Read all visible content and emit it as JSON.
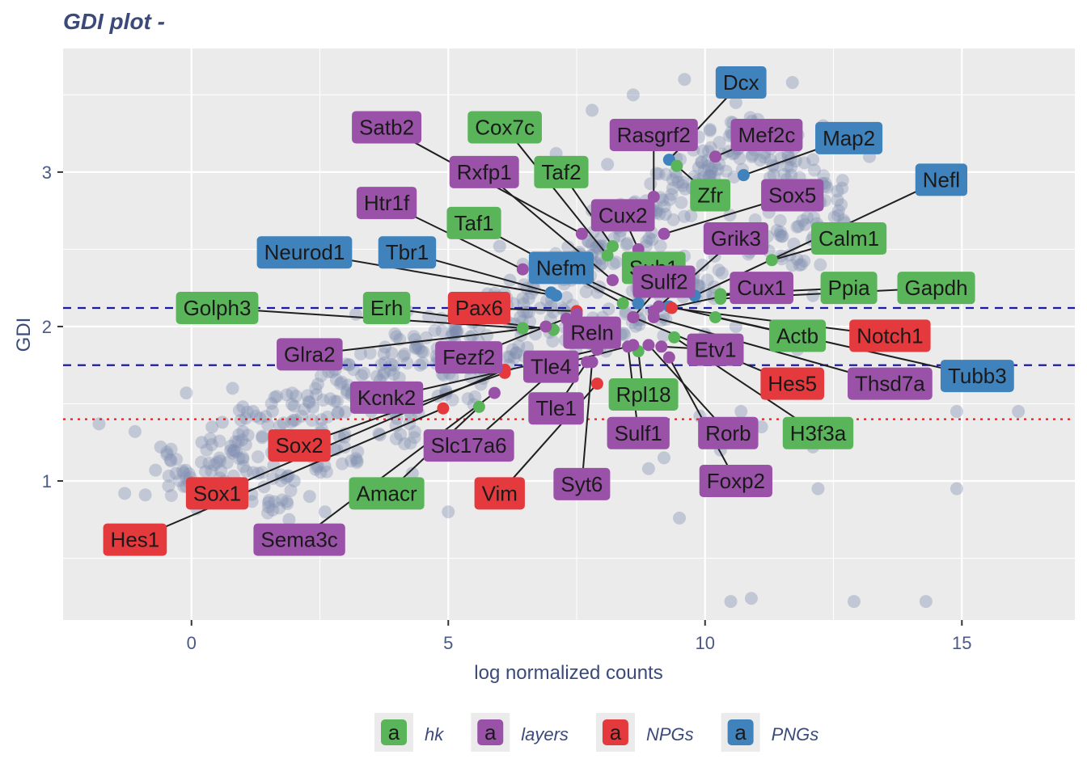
{
  "chart_data": {
    "type": "scatter",
    "title": "GDI plot -",
    "xlabel": "log normalized counts",
    "ylabel": "GDI",
    "xlim": [
      -2.5,
      17.2
    ],
    "ylim": [
      0.1,
      3.8
    ],
    "x_ticks": [
      0,
      5,
      10,
      15
    ],
    "y_ticks": [
      1,
      2,
      3
    ],
    "hlines": [
      {
        "y": 2.12,
        "style": "dashed",
        "color": "#1a1aa6"
      },
      {
        "y": 1.75,
        "style": "dashed",
        "color": "#1a1aa6"
      },
      {
        "y": 1.4,
        "style": "dotted",
        "color": "#ee1c1c"
      }
    ],
    "background_points": [
      [
        -1.8,
        1.37
      ],
      [
        -1.1,
        1.32
      ],
      [
        -1.3,
        0.92
      ],
      [
        -0.9,
        0.91
      ],
      [
        -0.7,
        1.07
      ],
      [
        -0.6,
        1.22
      ],
      [
        -0.4,
        1.13
      ],
      [
        -0.3,
        1.05
      ],
      [
        -0.1,
        1.02
      ],
      [
        0.2,
        1.25
      ],
      [
        0.4,
        1.35
      ],
      [
        0.6,
        1.38
      ],
      [
        0.8,
        1.18
      ],
      [
        0.5,
        1.12
      ],
      [
        1.0,
        1.32
      ],
      [
        1.2,
        1.45
      ],
      [
        0.3,
        0.95
      ],
      [
        0.7,
        0.98
      ],
      [
        1.5,
        0.86
      ],
      [
        1.3,
        1.05
      ],
      [
        -0.1,
        1.57
      ],
      [
        0.8,
        1.6
      ],
      [
        1.0,
        1.48
      ],
      [
        1.8,
        1.28
      ],
      [
        0.1,
        0.82
      ],
      [
        1.9,
        0.75
      ],
      [
        2.3,
        0.9
      ],
      [
        2.6,
        0.8
      ],
      [
        5.0,
        0.8
      ],
      [
        9.5,
        0.76
      ],
      [
        4.3,
        1.05
      ],
      [
        3.5,
        1.45
      ],
      [
        4.8,
        1.55
      ],
      [
        2.8,
        1.72
      ],
      [
        2.9,
        1.63
      ],
      [
        3.2,
        2.08
      ],
      [
        4.2,
        2.1
      ],
      [
        5.3,
        2.05
      ],
      [
        6.2,
        2.3
      ],
      [
        6.0,
        2.52
      ],
      [
        7.3,
        2.35
      ],
      [
        7.8,
        2.75
      ],
      [
        7.1,
        3.12
      ],
      [
        8.1,
        3.05
      ],
      [
        7.8,
        3.4
      ],
      [
        8.6,
        3.5
      ],
      [
        9.6,
        3.6
      ],
      [
        11.7,
        3.58
      ],
      [
        12.3,
        3.3
      ],
      [
        11.2,
        3.2
      ],
      [
        10.6,
        3.45
      ],
      [
        13.2,
        3.1
      ],
      [
        11.9,
        2.9
      ],
      [
        12.6,
        2.75
      ],
      [
        12.1,
        2.2
      ],
      [
        10.6,
        2.0
      ],
      [
        11.1,
        1.35
      ],
      [
        9.9,
        1.42
      ],
      [
        9.2,
        1.15
      ],
      [
        8.9,
        1.08
      ],
      [
        10.5,
        1.02
      ],
      [
        12.1,
        1.22
      ],
      [
        10.0,
        1.95
      ],
      [
        12.2,
        0.95
      ],
      [
        14.9,
        1.45
      ],
      [
        16.1,
        1.45
      ],
      [
        14.9,
        0.95
      ],
      [
        10.5,
        0.22
      ],
      [
        10.9,
        0.24
      ],
      [
        12.9,
        0.22
      ],
      [
        14.3,
        0.22
      ],
      [
        11.8,
        1.85
      ],
      [
        10.7,
        1.45
      ],
      [
        10.3,
        1.2
      ],
      [
        9.1,
        1.25
      ],
      [
        2.3,
        1.2
      ],
      [
        1.6,
        1.1
      ],
      [
        2.0,
        1.0
      ]
    ],
    "background_cloud": [
      [
        -0.1,
        1.05
      ],
      [
        0.6,
        1.15
      ],
      [
        1.3,
        1.3
      ],
      [
        2.0,
        1.42
      ],
      [
        2.7,
        1.55
      ],
      [
        3.4,
        1.68
      ],
      [
        4.1,
        1.8
      ],
      [
        4.8,
        1.92
      ],
      [
        5.5,
        2.02
      ],
      [
        6.2,
        2.12
      ],
      [
        6.9,
        2.25
      ],
      [
        7.5,
        2.38
      ],
      [
        8.1,
        2.52
      ],
      [
        8.7,
        2.68
      ],
      [
        9.3,
        2.85
      ],
      [
        9.8,
        3.0
      ],
      [
        10.3,
        3.12
      ],
      [
        10.9,
        3.2
      ],
      [
        11.4,
        3.12
      ],
      [
        11.9,
        2.95
      ],
      [
        12.3,
        2.8
      ],
      [
        1.5,
        0.95
      ],
      [
        2.8,
        1.2
      ],
      [
        4.0,
        1.4
      ],
      [
        5.3,
        1.65
      ],
      [
        6.6,
        1.9
      ],
      [
        7.7,
        2.0
      ],
      [
        8.8,
        2.1
      ],
      [
        9.9,
        2.3
      ],
      [
        10.8,
        2.6
      ],
      [
        11.8,
        2.55
      ]
    ],
    "categories": [
      "hk",
      "layers",
      "NPGs",
      "PNGs"
    ],
    "category_colors": {
      "hk": "#5ab55a",
      "layers": "#9a52a8",
      "NPGs": "#e43a3d",
      "PNGs": "#3f82bc"
    },
    "labelled_genes": [
      {
        "gene": "Dcx",
        "cat": "PNGs",
        "x": 9.3,
        "y": 3.08,
        "lx": 10.7,
        "ly": 3.58
      },
      {
        "gene": "Map2",
        "cat": "PNGs",
        "x": 10.75,
        "y": 2.98,
        "lx": 12.8,
        "ly": 3.22
      },
      {
        "gene": "Nefl",
        "cat": "PNGs",
        "x": 9.8,
        "y": 2.2,
        "lx": 14.6,
        "ly": 2.95
      },
      {
        "gene": "Neurod1",
        "cat": "PNGs",
        "x": 7.1,
        "y": 2.2,
        "lx": 2.2,
        "ly": 2.48
      },
      {
        "gene": "Tbr1",
        "cat": "PNGs",
        "x": 7.0,
        "y": 2.22,
        "lx": 4.2,
        "ly": 2.48
      },
      {
        "gene": "Nefm",
        "cat": "PNGs",
        "x": 8.7,
        "y": 2.15,
        "lx": 7.2,
        "ly": 2.38
      },
      {
        "gene": "Tubb3",
        "cat": "PNGs",
        "x": 9.3,
        "y": 2.13,
        "lx": 15.3,
        "ly": 1.68
      },
      {
        "gene": "Cox7c",
        "cat": "hk",
        "x": 8.1,
        "y": 2.46,
        "lx": 6.1,
        "ly": 3.29
      },
      {
        "gene": "Taf2",
        "cat": "hk",
        "x": 8.2,
        "y": 2.52,
        "lx": 7.2,
        "ly": 3.0
      },
      {
        "gene": "Zfr",
        "cat": "hk",
        "x": 9.45,
        "y": 3.04,
        "lx": 10.1,
        "ly": 2.85
      },
      {
        "gene": "Taf1",
        "cat": "hk",
        "x": 8.4,
        "y": 2.15,
        "lx": 5.5,
        "ly": 2.67
      },
      {
        "gene": "Sub1",
        "cat": "hk",
        "x": 8.9,
        "y": 2.34,
        "lx": 9.0,
        "ly": 2.38
      },
      {
        "gene": "Calm1",
        "cat": "hk",
        "x": 11.3,
        "y": 2.43,
        "lx": 12.8,
        "ly": 2.57
      },
      {
        "gene": "Ppia",
        "cat": "hk",
        "x": 10.3,
        "y": 2.21,
        "lx": 12.8,
        "ly": 2.25
      },
      {
        "gene": "Gapdh",
        "cat": "hk",
        "x": 10.3,
        "y": 2.18,
        "lx": 14.5,
        "ly": 2.25
      },
      {
        "gene": "Golph3",
        "cat": "hk",
        "x": 6.45,
        "y": 1.99,
        "lx": 0.5,
        "ly": 2.12
      },
      {
        "gene": "Erh",
        "cat": "hk",
        "x": 7.05,
        "y": 1.98,
        "lx": 3.8,
        "ly": 2.12
      },
      {
        "gene": "Actb",
        "cat": "hk",
        "x": 10.2,
        "y": 2.06,
        "lx": 11.8,
        "ly": 1.94
      },
      {
        "gene": "Rpl18",
        "cat": "hk",
        "x": 8.7,
        "y": 1.84,
        "lx": 8.8,
        "ly": 1.56
      },
      {
        "gene": "H3f3a",
        "cat": "hk",
        "x": 9.4,
        "y": 1.93,
        "lx": 12.2,
        "ly": 1.31
      },
      {
        "gene": "Amacr",
        "cat": "hk",
        "x": 5.6,
        "y": 1.48,
        "lx": 3.8,
        "ly": 0.92
      },
      {
        "gene": "Pax6",
        "cat": "NPGs",
        "x": 7.5,
        "y": 2.1,
        "lx": 5.6,
        "ly": 2.12
      },
      {
        "gene": "Notch1",
        "cat": "NPGs",
        "x": 9.35,
        "y": 2.12,
        "lx": 13.6,
        "ly": 1.94
      },
      {
        "gene": "Hes5",
        "cat": "NPGs",
        "x": 8.6,
        "y": 2.06,
        "lx": 11.7,
        "ly": 1.63
      },
      {
        "gene": "Sox2",
        "cat": "NPGs",
        "x": 6.1,
        "y": 1.7,
        "lx": 2.1,
        "ly": 1.23
      },
      {
        "gene": "Sox1",
        "cat": "NPGs",
        "x": 6.1,
        "y": 1.72,
        "lx": 0.5,
        "ly": 0.92
      },
      {
        "gene": "Hes1",
        "cat": "NPGs",
        "x": 4.9,
        "y": 1.47,
        "lx": -1.1,
        "ly": 0.62
      },
      {
        "gene": "Vim",
        "cat": "NPGs",
        "x": 7.9,
        "y": 1.63,
        "lx": 6.0,
        "ly": 0.92
      },
      {
        "gene": "Satb2",
        "cat": "layers",
        "x": 7.6,
        "y": 2.6,
        "lx": 3.8,
        "ly": 3.29
      },
      {
        "gene": "Rasgrf2",
        "cat": "layers",
        "x": 9.0,
        "y": 2.84,
        "lx": 9.0,
        "ly": 3.24
      },
      {
        "gene": "Mef2c",
        "cat": "layers",
        "x": 10.2,
        "y": 3.1,
        "lx": 11.2,
        "ly": 3.24
      },
      {
        "gene": "Sox5",
        "cat": "layers",
        "x": 9.2,
        "y": 2.6,
        "lx": 11.7,
        "ly": 2.85
      },
      {
        "gene": "Rxfp1",
        "cat": "layers",
        "x": 8.2,
        "y": 2.3,
        "lx": 5.7,
        "ly": 3.0
      },
      {
        "gene": "Cux2",
        "cat": "layers",
        "x": 8.7,
        "y": 2.5,
        "lx": 8.4,
        "ly": 2.72
      },
      {
        "gene": "Htr1f",
        "cat": "layers",
        "x": 6.45,
        "y": 2.37,
        "lx": 3.8,
        "ly": 2.8
      },
      {
        "gene": "Grik3",
        "cat": "layers",
        "x": 9.1,
        "y": 2.13,
        "lx": 10.6,
        "ly": 2.57
      },
      {
        "gene": "Sulf2",
        "cat": "layers",
        "x": 8.6,
        "y": 2.06,
        "lx": 9.2,
        "ly": 2.29
      },
      {
        "gene": "Cux1",
        "cat": "layers",
        "x": 9.0,
        "y": 2.1,
        "lx": 11.1,
        "ly": 2.25
      },
      {
        "gene": "Reln",
        "cat": "layers",
        "x": 7.3,
        "y": 2.05,
        "lx": 7.8,
        "ly": 1.96
      },
      {
        "gene": "Glra2",
        "cat": "layers",
        "x": 6.9,
        "y": 2.0,
        "lx": 2.3,
        "ly": 1.82
      },
      {
        "gene": "Fezf2",
        "cat": "layers",
        "x": 7.5,
        "y": 2.08,
        "lx": 5.4,
        "ly": 1.8
      },
      {
        "gene": "Tle4",
        "cat": "layers",
        "x": 8.6,
        "y": 1.88,
        "lx": 7.0,
        "ly": 1.74
      },
      {
        "gene": "Etv1",
        "cat": "layers",
        "x": 9.15,
        "y": 1.87,
        "lx": 10.2,
        "ly": 1.85
      },
      {
        "gene": "Thsd7a",
        "cat": "layers",
        "x": 9.0,
        "y": 2.06,
        "lx": 13.6,
        "ly": 1.63
      },
      {
        "gene": "Kcnk2",
        "cat": "layers",
        "x": 7.9,
        "y": 1.85,
        "lx": 3.8,
        "ly": 1.54
      },
      {
        "gene": "Tle1",
        "cat": "layers",
        "x": 7.7,
        "y": 1.77,
        "lx": 7.1,
        "ly": 1.47
      },
      {
        "gene": "Slc17a6",
        "cat": "layers",
        "x": 7.0,
        "y": 1.7,
        "lx": 5.4,
        "ly": 1.23
      },
      {
        "gene": "Sulf1",
        "cat": "layers",
        "x": 8.5,
        "y": 1.87,
        "lx": 8.7,
        "ly": 1.31
      },
      {
        "gene": "Rorb",
        "cat": "layers",
        "x": 8.9,
        "y": 1.88,
        "lx": 10.45,
        "ly": 1.31
      },
      {
        "gene": "Syt6",
        "cat": "layers",
        "x": 7.8,
        "y": 1.77,
        "lx": 7.6,
        "ly": 0.98
      },
      {
        "gene": "Foxp2",
        "cat": "layers",
        "x": 9.3,
        "y": 1.8,
        "lx": 10.6,
        "ly": 1.0
      },
      {
        "gene": "Sema3c",
        "cat": "layers",
        "x": 5.9,
        "y": 1.57,
        "lx": 2.1,
        "ly": 0.62
      }
    ],
    "legend": {
      "position": "bottom",
      "key_glyph": "a",
      "items": [
        "hk",
        "layers",
        "NPGs",
        "PNGs"
      ]
    }
  }
}
